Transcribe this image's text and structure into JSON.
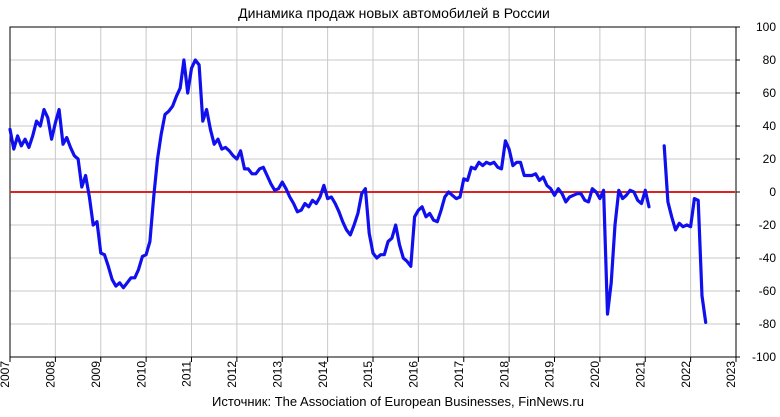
{
  "chart_data": {
    "type": "line",
    "title": "Динамика продаж новых автомобилей в России",
    "source": "Источник: The Association of European Businesses, FinNews.ru",
    "x_tick_labels": [
      "2007",
      "2008",
      "2009",
      "2010",
      "2011",
      "2012",
      "2013",
      "2014",
      "2015",
      "2016",
      "2017",
      "2018",
      "2019",
      "2020",
      "2021",
      "2022",
      "2023"
    ],
    "y_tick_labels": [
      "100",
      "80",
      "60",
      "40",
      "20",
      "0",
      "-20",
      "-40",
      "-60",
      "-80",
      "-100"
    ],
    "xlim": [
      2007,
      2023
    ],
    "ylim": [
      -100,
      100
    ],
    "y_axis_position": "right",
    "grid": true,
    "legend": "none",
    "colors": {
      "series": "#1010ee",
      "zero_line": "#dd2222",
      "grid": "#c8c8c8"
    },
    "series": [
      {
        "segments": [
          [
            [
              2007.0,
              38
            ],
            [
              2007.083,
              26
            ],
            [
              2007.167,
              34
            ],
            [
              2007.25,
              28
            ],
            [
              2007.333,
              32
            ],
            [
              2007.417,
              27
            ],
            [
              2007.5,
              34
            ],
            [
              2007.583,
              43
            ],
            [
              2007.667,
              40
            ],
            [
              2007.75,
              50
            ],
            [
              2007.833,
              45
            ],
            [
              2007.917,
              32
            ],
            [
              2008.0,
              42
            ],
            [
              2008.083,
              50
            ],
            [
              2008.167,
              29
            ],
            [
              2008.25,
              33
            ],
            [
              2008.333,
              27
            ],
            [
              2008.417,
              22
            ],
            [
              2008.5,
              20
            ],
            [
              2008.583,
              3
            ],
            [
              2008.667,
              10
            ],
            [
              2008.75,
              -3
            ],
            [
              2008.833,
              -20
            ],
            [
              2008.917,
              -18
            ],
            [
              2009.0,
              -37
            ],
            [
              2009.083,
              -38
            ],
            [
              2009.167,
              -45
            ],
            [
              2009.25,
              -53
            ],
            [
              2009.333,
              -57
            ],
            [
              2009.417,
              -55
            ],
            [
              2009.5,
              -58
            ],
            [
              2009.583,
              -55
            ],
            [
              2009.667,
              -52
            ],
            [
              2009.75,
              -52
            ],
            [
              2009.833,
              -47
            ],
            [
              2009.917,
              -39
            ],
            [
              2010.0,
              -38
            ],
            [
              2010.083,
              -30
            ],
            [
              2010.167,
              -3
            ],
            [
              2010.25,
              20
            ],
            [
              2010.333,
              35
            ],
            [
              2010.417,
              47
            ],
            [
              2010.5,
              49
            ],
            [
              2010.583,
              52
            ],
            [
              2010.667,
              58
            ],
            [
              2010.75,
              63
            ],
            [
              2010.833,
              80
            ],
            [
              2010.917,
              60
            ],
            [
              2011.0,
              75
            ],
            [
              2011.083,
              80
            ],
            [
              2011.167,
              77
            ],
            [
              2011.25,
              43
            ],
            [
              2011.333,
              50
            ],
            [
              2011.417,
              38
            ],
            [
              2011.5,
              29
            ],
            [
              2011.583,
              32
            ],
            [
              2011.667,
              26
            ],
            [
              2011.75,
              27
            ],
            [
              2011.833,
              25
            ],
            [
              2011.917,
              22
            ],
            [
              2012.0,
              20
            ],
            [
              2012.083,
              25
            ],
            [
              2012.167,
              14
            ],
            [
              2012.25,
              14
            ],
            [
              2012.333,
              11
            ],
            [
              2012.417,
              11
            ],
            [
              2012.5,
              14
            ],
            [
              2012.583,
              15
            ],
            [
              2012.667,
              10
            ],
            [
              2012.75,
              5
            ],
            [
              2012.833,
              1
            ],
            [
              2012.917,
              2
            ],
            [
              2013.0,
              6
            ],
            [
              2013.083,
              2
            ],
            [
              2013.167,
              -3
            ],
            [
              2013.25,
              -7
            ],
            [
              2013.333,
              -12
            ],
            [
              2013.417,
              -11
            ],
            [
              2013.5,
              -7
            ],
            [
              2013.583,
              -9
            ],
            [
              2013.667,
              -5
            ],
            [
              2013.75,
              -7
            ],
            [
              2013.833,
              -3
            ],
            [
              2013.917,
              4
            ],
            [
              2014.0,
              -4
            ],
            [
              2014.083,
              -3
            ],
            [
              2014.167,
              -7
            ],
            [
              2014.25,
              -12
            ],
            [
              2014.333,
              -18
            ],
            [
              2014.417,
              -23
            ],
            [
              2014.5,
              -26
            ],
            [
              2014.583,
              -20
            ],
            [
              2014.667,
              -13
            ],
            [
              2014.75,
              -1
            ],
            [
              2014.833,
              2
            ],
            [
              2014.917,
              -25
            ],
            [
              2015.0,
              -37
            ],
            [
              2015.083,
              -40
            ],
            [
              2015.167,
              -38
            ],
            [
              2015.25,
              -38
            ],
            [
              2015.333,
              -30
            ],
            [
              2015.417,
              -28
            ],
            [
              2015.5,
              -20
            ],
            [
              2015.583,
              -32
            ],
            [
              2015.667,
              -40
            ],
            [
              2015.75,
              -42
            ],
            [
              2015.833,
              -45
            ],
            [
              2015.917,
              -15
            ],
            [
              2016.0,
              -11
            ],
            [
              2016.083,
              -9
            ],
            [
              2016.167,
              -15
            ],
            [
              2016.25,
              -13
            ],
            [
              2016.333,
              -17
            ],
            [
              2016.417,
              -18
            ],
            [
              2016.5,
              -11
            ],
            [
              2016.583,
              -3
            ],
            [
              2016.667,
              0
            ],
            [
              2016.75,
              -2
            ],
            [
              2016.833,
              -4
            ],
            [
              2016.917,
              -3
            ],
            [
              2017.0,
              8
            ],
            [
              2017.083,
              7
            ],
            [
              2017.167,
              15
            ],
            [
              2017.25,
              14
            ],
            [
              2017.333,
              18
            ],
            [
              2017.417,
              16
            ],
            [
              2017.5,
              18
            ],
            [
              2017.583,
              17
            ],
            [
              2017.667,
              18
            ],
            [
              2017.75,
              15
            ],
            [
              2017.833,
              14
            ],
            [
              2017.917,
              31
            ],
            [
              2018.0,
              26
            ],
            [
              2018.083,
              16
            ],
            [
              2018.167,
              18
            ],
            [
              2018.25,
              18
            ],
            [
              2018.333,
              10
            ],
            [
              2018.417,
              10
            ],
            [
              2018.5,
              10
            ],
            [
              2018.583,
              11
            ],
            [
              2018.667,
              7
            ],
            [
              2018.75,
              9
            ],
            [
              2018.833,
              4
            ],
            [
              2018.917,
              2
            ],
            [
              2019.0,
              -2
            ],
            [
              2019.083,
              2
            ],
            [
              2019.167,
              -1
            ],
            [
              2019.25,
              -6
            ],
            [
              2019.333,
              -3
            ],
            [
              2019.417,
              -2
            ],
            [
              2019.5,
              -1
            ],
            [
              2019.583,
              -1
            ],
            [
              2019.667,
              -5
            ],
            [
              2019.75,
              -6
            ],
            [
              2019.833,
              2
            ],
            [
              2019.917,
              0
            ],
            [
              2020.0,
              -4
            ],
            [
              2020.083,
              1
            ],
            [
              2020.167,
              -74
            ],
            [
              2020.25,
              -55
            ],
            [
              2020.333,
              -20
            ],
            [
              2020.417,
              1
            ],
            [
              2020.5,
              -4
            ],
            [
              2020.583,
              -2
            ],
            [
              2020.667,
              1
            ],
            [
              2020.75,
              0
            ],
            [
              2020.833,
              -5
            ],
            [
              2020.917,
              -7
            ],
            [
              2021.0,
              1
            ],
            [
              2021.083,
              -9
            ]
          ],
          [
            [
              2021.417,
              28
            ],
            [
              2021.5,
              -6
            ],
            [
              2021.583,
              -15
            ],
            [
              2021.667,
              -23
            ],
            [
              2021.75,
              -19
            ],
            [
              2021.833,
              -21
            ],
            [
              2021.917,
              -20
            ],
            [
              2022.0,
              -21
            ],
            [
              2022.083,
              -4
            ],
            [
              2022.167,
              -5
            ],
            [
              2022.25,
              -63
            ],
            [
              2022.333,
              -79
            ]
          ]
        ]
      }
    ]
  }
}
